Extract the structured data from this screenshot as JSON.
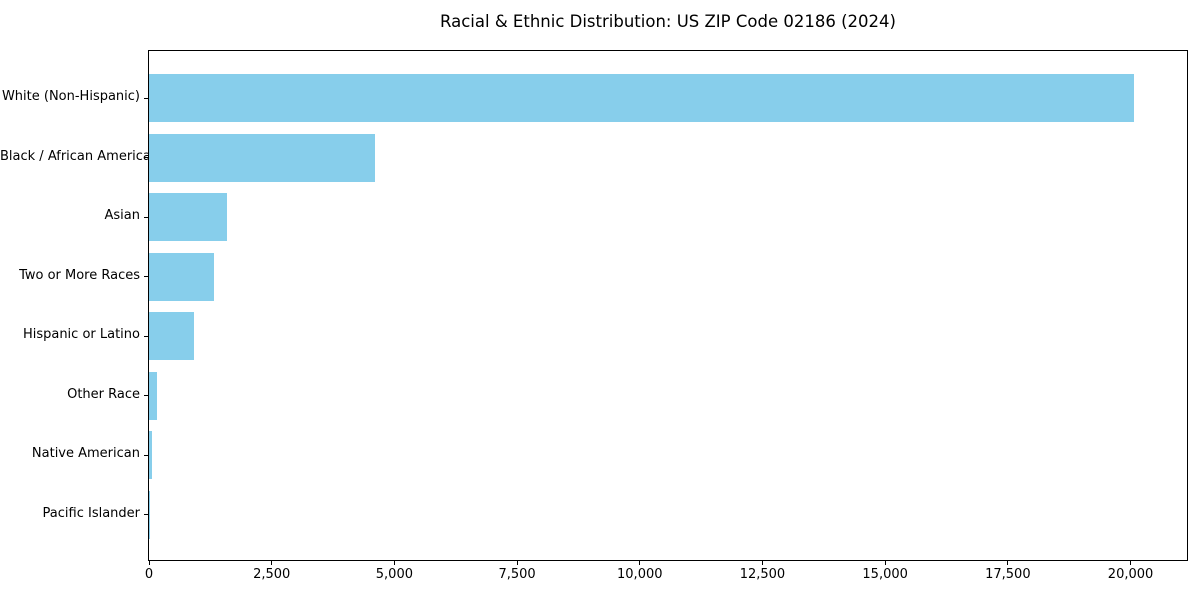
{
  "chart_data": {
    "type": "bar",
    "orientation": "horizontal",
    "title": "Racial & Ethnic Distribution: US ZIP Code 02186 (2024)",
    "xlabel": "",
    "ylabel": "",
    "categories": [
      "White (Non-Hispanic)",
      "Black / African American",
      "Asian",
      "Two or More Races",
      "Hispanic or Latino",
      "Other Race",
      "Native American",
      "Pacific Islander"
    ],
    "values": [
      20080,
      4600,
      1590,
      1330,
      920,
      160,
      60,
      8
    ],
    "xlim": [
      0,
      21150
    ],
    "x_ticks": [
      0,
      2500,
      5000,
      7500,
      10000,
      12500,
      15000,
      17500,
      20000
    ],
    "x_tick_labels": [
      "0",
      "2,500",
      "5,000",
      "7,500",
      "10,000",
      "12,500",
      "15,000",
      "17,500",
      "20,000"
    ],
    "grid": false,
    "legend": null,
    "bar_color": "#87CEEB",
    "axis_color": "#000000",
    "text_color": "#000000",
    "background_color": "#ffffff"
  }
}
